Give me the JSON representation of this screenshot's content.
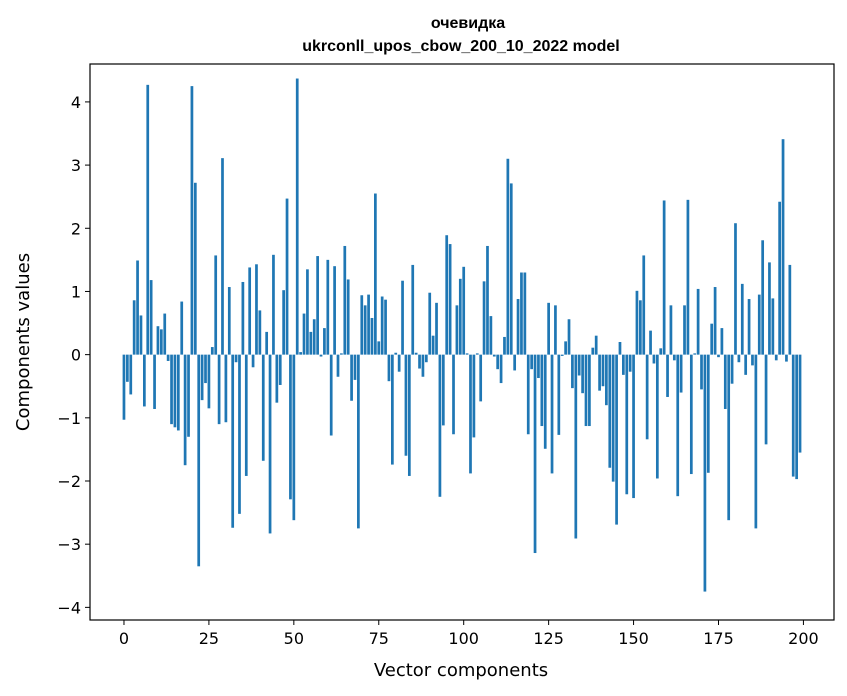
{
  "chart_data": {
    "type": "bar",
    "title": "очевидка",
    "subtitle": "ukrconll_upos_cbow_200_10_2022 model",
    "xlabel": "Vector components",
    "ylabel": "Components values",
    "xlim": [
      -10,
      209
    ],
    "ylim": [
      -4.2,
      4.6
    ],
    "xticks": [
      0,
      25,
      50,
      75,
      100,
      125,
      150,
      175,
      200
    ],
    "yticks": [
      -4,
      -3,
      -2,
      -1,
      0,
      1,
      2,
      3,
      4
    ],
    "ytick_labels": [
      "−4",
      "−3",
      "−2",
      "−1",
      "0",
      "1",
      "2",
      "3",
      "4"
    ],
    "grid": false,
    "color": "#1f77b4",
    "x": [
      0,
      1,
      2,
      3,
      4,
      5,
      6,
      7,
      8,
      9,
      10,
      11,
      12,
      13,
      14,
      15,
      16,
      17,
      18,
      19,
      20,
      21,
      22,
      23,
      24,
      25,
      26,
      27,
      28,
      29,
      30,
      31,
      32,
      33,
      34,
      35,
      36,
      37,
      38,
      39,
      40,
      41,
      42,
      43,
      44,
      45,
      46,
      47,
      48,
      49,
      50,
      51,
      52,
      53,
      54,
      55,
      56,
      57,
      58,
      59,
      60,
      61,
      62,
      63,
      64,
      65,
      66,
      67,
      68,
      69,
      70,
      71,
      72,
      73,
      74,
      75,
      76,
      77,
      78,
      79,
      80,
      81,
      82,
      83,
      84,
      85,
      86,
      87,
      88,
      89,
      90,
      91,
      92,
      93,
      94,
      95,
      96,
      97,
      98,
      99,
      100,
      101,
      102,
      103,
      104,
      105,
      106,
      107,
      108,
      109,
      110,
      111,
      112,
      113,
      114,
      115,
      116,
      117,
      118,
      119,
      120,
      121,
      122,
      123,
      124,
      125,
      126,
      127,
      128,
      129,
      130,
      131,
      132,
      133,
      134,
      135,
      136,
      137,
      138,
      139,
      140,
      141,
      142,
      143,
      144,
      145,
      146,
      147,
      148,
      149,
      150,
      151,
      152,
      153,
      154,
      155,
      156,
      157,
      158,
      159,
      160,
      161,
      162,
      163,
      164,
      165,
      166,
      167,
      168,
      169,
      170,
      171,
      172,
      173,
      174,
      175,
      176,
      177,
      178,
      179,
      180,
      181,
      182,
      183,
      184,
      185,
      186,
      187,
      188,
      189,
      190,
      191,
      192,
      193,
      194,
      195,
      196,
      197,
      198,
      199
    ],
    "values": [
      -1.03,
      -0.43,
      -0.63,
      0.86,
      1.49,
      0.62,
      -0.82,
      4.27,
      1.18,
      -0.86,
      0.45,
      0.4,
      0.65,
      -0.1,
      -1.1,
      -1.15,
      -1.2,
      0.84,
      -1.75,
      -1.3,
      4.25,
      2.72,
      -3.35,
      -0.72,
      -0.45,
      -0.85,
      0.12,
      1.57,
      -1.1,
      3.11,
      -1.07,
      1.07,
      -2.74,
      -0.12,
      -2.52,
      1.15,
      -1.92,
      1.38,
      -0.2,
      1.43,
      0.7,
      -1.68,
      0.36,
      -2.83,
      1.58,
      -0.76,
      -0.48,
      1.02,
      2.47,
      -2.29,
      -2.62,
      4.37,
      0.04,
      0.65,
      1.35,
      0.36,
      0.56,
      1.56,
      -0.03,
      0.42,
      1.5,
      -1.28,
      1.4,
      -0.35,
      0.02,
      1.72,
      1.19,
      -0.73,
      -0.4,
      -2.75,
      0.94,
      0.78,
      0.95,
      0.58,
      2.55,
      0.21,
      0.92,
      0.87,
      -0.42,
      -1.74,
      0.03,
      -0.27,
      1.17,
      -1.6,
      -1.92,
      1.42,
      0.03,
      -0.22,
      -0.35,
      -0.12,
      0.98,
      0.3,
      0.82,
      -2.25,
      -1.12,
      1.89,
      1.75,
      -1.26,
      0.78,
      1.2,
      1.39,
      0.02,
      -1.88,
      -1.31,
      0.02,
      -0.74,
      1.16,
      1.72,
      0.61,
      -0.03,
      -0.23,
      -0.45,
      0.28,
      3.1,
      2.71,
      -0.25,
      0.88,
      1.3,
      1.3,
      -1.26,
      -0.23,
      -3.14,
      -0.37,
      -1.13,
      -1.49,
      0.82,
      -1.88,
      0.78,
      -1.27,
      -0.02,
      0.21,
      0.56,
      -0.53,
      -2.91,
      -0.33,
      -0.61,
      -1.13,
      -1.13,
      0.11,
      0.3,
      -0.57,
      -0.5,
      -0.8,
      -1.79,
      -2.01,
      -2.69,
      0.2,
      -0.32,
      -2.21,
      -0.27,
      -2.27,
      1.01,
      0.86,
      1.57,
      -1.34,
      0.38,
      -0.14,
      -1.96,
      0.1,
      2.44,
      -0.67,
      0.78,
      -0.09,
      -2.24,
      -0.6,
      0.78,
      2.45,
      -1.89,
      0.02,
      1.04,
      -0.55,
      -3.75,
      -1.87,
      0.49,
      1.07,
      -0.04,
      0.42,
      -0.86,
      -2.62,
      -0.46,
      2.08,
      -0.12,
      1.12,
      -0.32,
      0.88,
      -0.17,
      -2.75,
      0.95,
      1.81,
      -1.42,
      1.46,
      0.89,
      -0.09,
      2.42,
      3.41,
      -0.11,
      1.42,
      -1.93,
      -1.97,
      -1.55
    ]
  }
}
